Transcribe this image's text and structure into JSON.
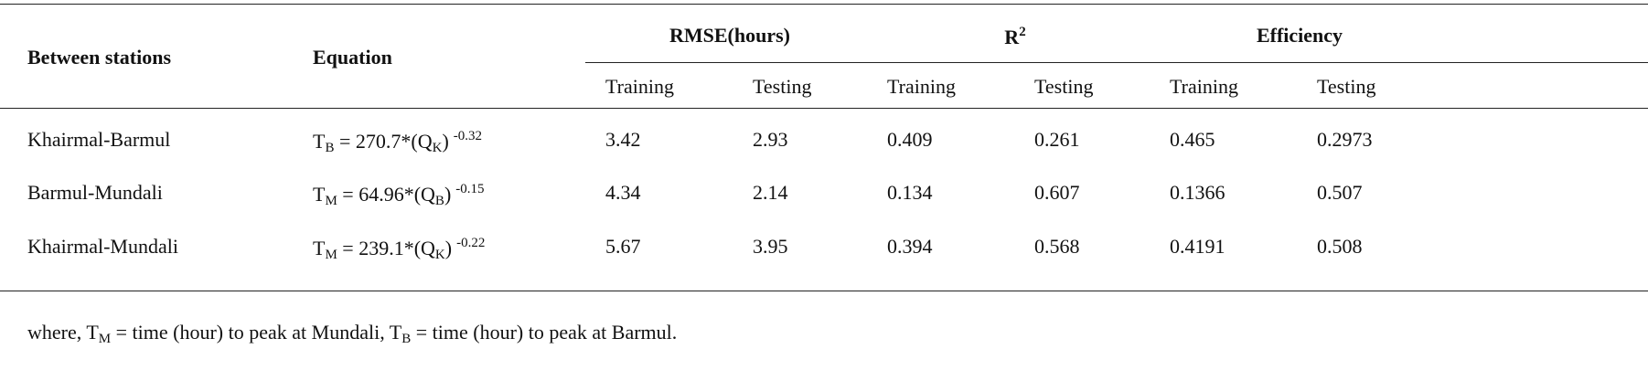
{
  "table": {
    "headers": {
      "between": "Between stations",
      "equation": "Equation",
      "rmse": "RMSE(hours)",
      "r2": {
        "base": "R",
        "sup": "2"
      },
      "efficiency": "Efficiency",
      "sub": [
        "Training",
        "Testing",
        "Training",
        "Testing",
        "Training",
        "Testing"
      ]
    },
    "rows": [
      {
        "stations": "Khairmal-Barmul",
        "equation": {
          "lhs": "T",
          "lhs_sub": "B",
          "mid": " = 270.7*(Q",
          "q_sub": "K",
          "close": ")",
          "exp": "-0.32"
        },
        "values": [
          3.42,
          2.93,
          0.409,
          0.261,
          0.465,
          0.2973
        ]
      },
      {
        "stations": "Barmul-Mundali",
        "equation": {
          "lhs": "T",
          "lhs_sub": "M",
          "mid": " = 64.96*(Q",
          "q_sub": "B",
          "close": ")",
          "exp": "-0.15"
        },
        "values": [
          4.34,
          2.14,
          0.134,
          0.607,
          0.1366,
          0.507
        ]
      },
      {
        "stations": "Khairmal-Mundali",
        "equation": {
          "lhs": "T",
          "lhs_sub": "M",
          "mid": " = 239.1*(Q",
          "q_sub": "K",
          "close": ")",
          "exp": "-0.22"
        },
        "values": [
          5.67,
          3.95,
          0.394,
          0.568,
          0.4191,
          0.508
        ]
      }
    ]
  },
  "footnote": {
    "a": "where, T",
    "a_sub": "M",
    "b": " = time (hour) to peak at Mundali, T",
    "b_sub": "B",
    "c": " = time (hour) to peak at Barmul."
  }
}
